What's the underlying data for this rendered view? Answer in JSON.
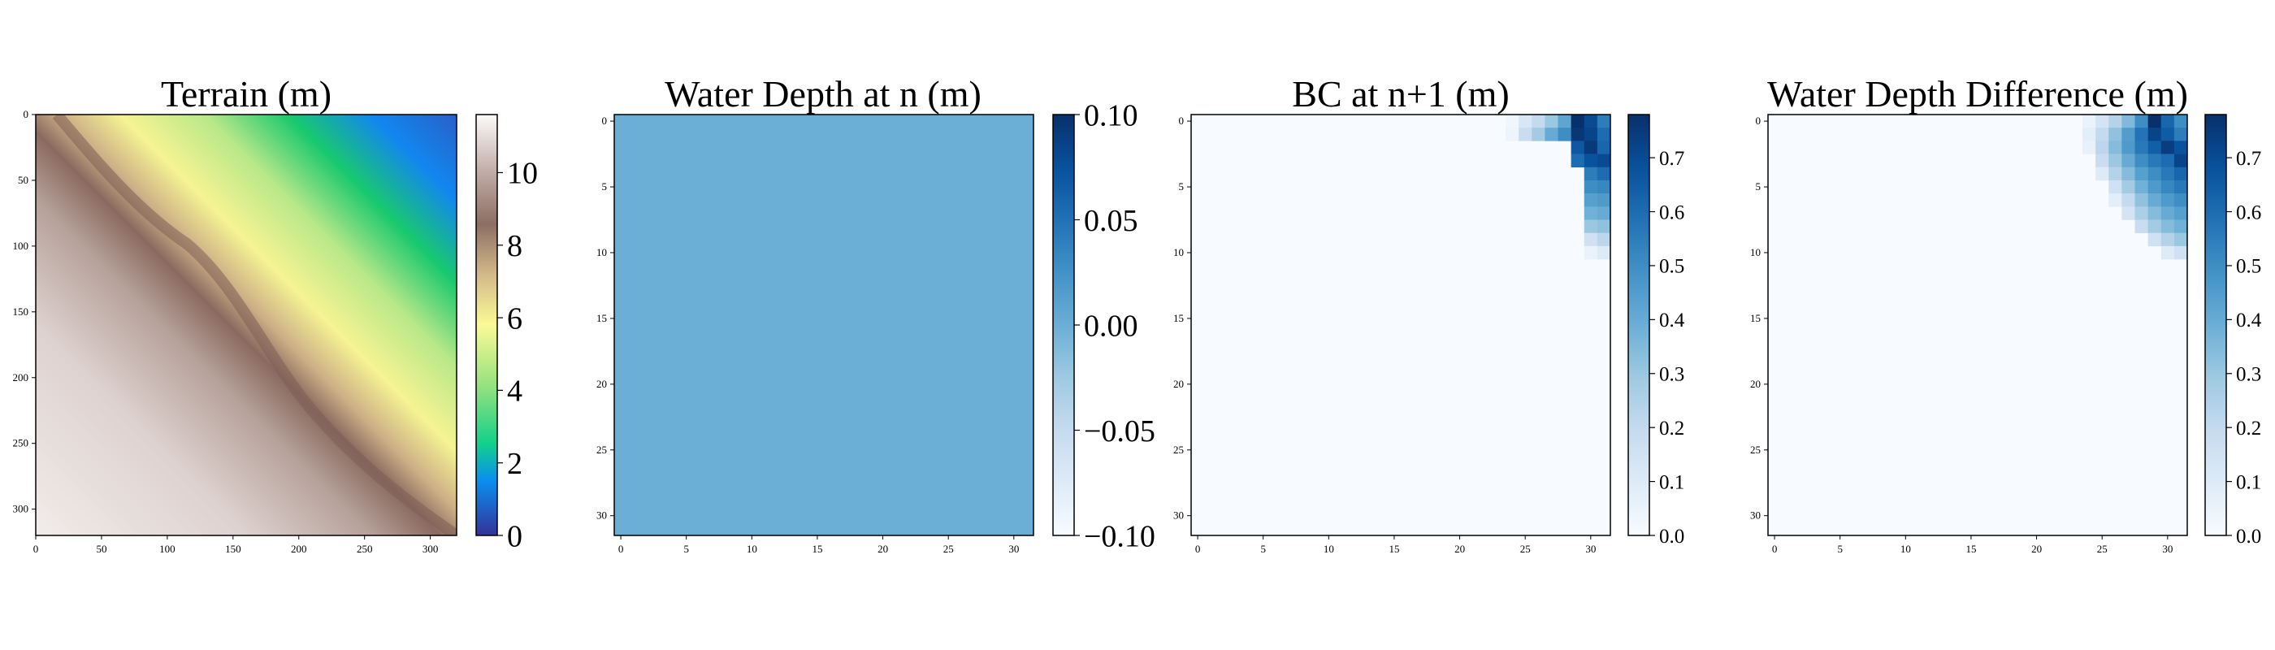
{
  "chart_data": [
    {
      "type": "heatmap",
      "title": "Terrain (m)",
      "xlabel": "",
      "ylabel": "",
      "extent": [
        0,
        320
      ],
      "x_ticks": [
        0,
        50,
        100,
        150,
        200,
        250,
        300
      ],
      "y_ticks": [
        0,
        50,
        100,
        150,
        200,
        250,
        300
      ],
      "colormap": "terrain",
      "colorbar": {
        "min": 0,
        "max": 11.6,
        "ticks": [
          0,
          2,
          4,
          6,
          8,
          10
        ],
        "tick_labels": [
          "0",
          "2",
          "4",
          "6",
          "8",
          "10"
        ]
      },
      "description_values": {
        "low_corner": "top-right",
        "high_corner": "bottom-left",
        "ridge_value": 8.5
      }
    },
    {
      "type": "heatmap",
      "title": "Water Depth at n (m)",
      "xlabel": "",
      "ylabel": "",
      "extent": [
        0,
        31
      ],
      "x_ticks": [
        0,
        5,
        10,
        15,
        20,
        25,
        30
      ],
      "y_ticks": [
        0,
        5,
        10,
        15,
        20,
        25,
        30
      ],
      "colormap": "Blues",
      "uniform_value": 0.0,
      "colorbar": {
        "min": -0.1,
        "max": 0.1,
        "ticks": [
          -0.1,
          -0.05,
          0.0,
          0.05,
          0.1
        ],
        "tick_labels": [
          "−0.10",
          "−0.05",
          "0.00",
          "0.05",
          "0.10"
        ]
      }
    },
    {
      "type": "heatmap",
      "title": "BC at n+1 (m)",
      "xlabel": "",
      "ylabel": "",
      "extent": [
        0,
        31
      ],
      "x_ticks": [
        0,
        5,
        10,
        15,
        20,
        25,
        30
      ],
      "y_ticks": [
        0,
        5,
        10,
        15,
        20,
        25,
        30
      ],
      "colormap": "Blues",
      "colorbar": {
        "min": 0,
        "max": 0.78,
        "ticks": [
          0,
          0.1,
          0.2,
          0.3,
          0.4,
          0.5,
          0.6,
          0.7
        ],
        "tick_labels": [
          "0.0",
          "0.1",
          "0.2",
          "0.3",
          "0.4",
          "0.5",
          "0.6",
          "0.7"
        ]
      },
      "cells": [
        [
          0,
          24,
          0.03
        ],
        [
          0,
          25,
          0.12
        ],
        [
          0,
          26,
          0.2
        ],
        [
          0,
          27,
          0.3
        ],
        [
          0,
          28,
          0.42
        ],
        [
          0,
          29,
          0.78
        ],
        [
          0,
          30,
          0.7
        ],
        [
          0,
          31,
          0.55
        ],
        [
          1,
          24,
          0.04
        ],
        [
          1,
          25,
          0.18
        ],
        [
          1,
          26,
          0.28
        ],
        [
          1,
          27,
          0.4
        ],
        [
          1,
          28,
          0.5
        ],
        [
          1,
          29,
          0.76
        ],
        [
          1,
          30,
          0.72
        ],
        [
          1,
          31,
          0.6
        ],
        [
          2,
          29,
          0.66
        ],
        [
          2,
          30,
          0.75
        ],
        [
          2,
          31,
          0.62
        ],
        [
          3,
          29,
          0.6
        ],
        [
          3,
          30,
          0.68
        ],
        [
          3,
          31,
          0.7
        ],
        [
          4,
          30,
          0.55
        ],
        [
          4,
          31,
          0.6
        ],
        [
          5,
          30,
          0.5
        ],
        [
          5,
          31,
          0.52
        ],
        [
          6,
          30,
          0.44
        ],
        [
          6,
          31,
          0.46
        ],
        [
          7,
          30,
          0.38
        ],
        [
          7,
          31,
          0.4
        ],
        [
          8,
          30,
          0.3
        ],
        [
          8,
          31,
          0.32
        ],
        [
          9,
          30,
          0.16
        ],
        [
          9,
          31,
          0.22
        ],
        [
          10,
          30,
          0.05
        ],
        [
          10,
          31,
          0.1
        ]
      ]
    },
    {
      "type": "heatmap",
      "title": "Water Depth Difference (m)",
      "xlabel": "",
      "ylabel": "",
      "extent": [
        0,
        31
      ],
      "x_ticks": [
        0,
        5,
        10,
        15,
        20,
        25,
        30
      ],
      "y_ticks": [
        0,
        5,
        10,
        15,
        20,
        25,
        30
      ],
      "colormap": "Blues",
      "colorbar": {
        "min": 0,
        "max": 0.78,
        "ticks": [
          0,
          0.1,
          0.2,
          0.3,
          0.4,
          0.5,
          0.6,
          0.7
        ],
        "tick_labels": [
          "0.0",
          "0.1",
          "0.2",
          "0.3",
          "0.4",
          "0.5",
          "0.6",
          "0.7"
        ]
      },
      "cells": [
        [
          0,
          24,
          0.05
        ],
        [
          0,
          25,
          0.14
        ],
        [
          0,
          26,
          0.24
        ],
        [
          0,
          27,
          0.35
        ],
        [
          0,
          28,
          0.5
        ],
        [
          0,
          29,
          0.78
        ],
        [
          0,
          30,
          0.62
        ],
        [
          0,
          31,
          0.5
        ],
        [
          1,
          24,
          0.08
        ],
        [
          1,
          25,
          0.2
        ],
        [
          1,
          26,
          0.32
        ],
        [
          1,
          27,
          0.45
        ],
        [
          1,
          28,
          0.58
        ],
        [
          1,
          29,
          0.72
        ],
        [
          1,
          30,
          0.65
        ],
        [
          1,
          31,
          0.55
        ],
        [
          2,
          24,
          0.06
        ],
        [
          2,
          25,
          0.22
        ],
        [
          2,
          26,
          0.34
        ],
        [
          2,
          27,
          0.46
        ],
        [
          2,
          28,
          0.56
        ],
        [
          2,
          29,
          0.64
        ],
        [
          2,
          30,
          0.74
        ],
        [
          2,
          31,
          0.68
        ],
        [
          3,
          25,
          0.18
        ],
        [
          3,
          26,
          0.3
        ],
        [
          3,
          27,
          0.4
        ],
        [
          3,
          28,
          0.5
        ],
        [
          3,
          29,
          0.56
        ],
        [
          3,
          30,
          0.6
        ],
        [
          3,
          31,
          0.72
        ],
        [
          4,
          25,
          0.1
        ],
        [
          4,
          26,
          0.24
        ],
        [
          4,
          27,
          0.34
        ],
        [
          4,
          28,
          0.44
        ],
        [
          4,
          29,
          0.5
        ],
        [
          4,
          30,
          0.56
        ],
        [
          4,
          31,
          0.62
        ],
        [
          5,
          26,
          0.16
        ],
        [
          5,
          27,
          0.28
        ],
        [
          5,
          28,
          0.38
        ],
        [
          5,
          29,
          0.46
        ],
        [
          5,
          30,
          0.52
        ],
        [
          5,
          31,
          0.56
        ],
        [
          6,
          26,
          0.08
        ],
        [
          6,
          27,
          0.2
        ],
        [
          6,
          28,
          0.32
        ],
        [
          6,
          29,
          0.4
        ],
        [
          6,
          30,
          0.46
        ],
        [
          6,
          31,
          0.5
        ],
        [
          7,
          27,
          0.14
        ],
        [
          7,
          28,
          0.26
        ],
        [
          7,
          29,
          0.34
        ],
        [
          7,
          30,
          0.4
        ],
        [
          7,
          31,
          0.44
        ],
        [
          8,
          28,
          0.18
        ],
        [
          8,
          29,
          0.28
        ],
        [
          8,
          30,
          0.34
        ],
        [
          8,
          31,
          0.38
        ],
        [
          9,
          29,
          0.16
        ],
        [
          9,
          30,
          0.24
        ],
        [
          9,
          31,
          0.3
        ],
        [
          10,
          30,
          0.1
        ],
        [
          10,
          31,
          0.16
        ]
      ]
    }
  ]
}
